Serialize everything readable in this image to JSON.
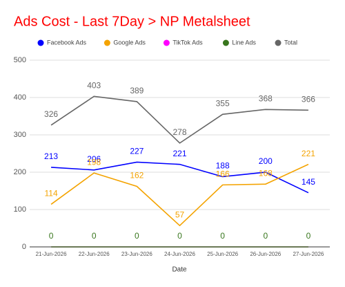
{
  "chart_data": {
    "type": "line",
    "title": "Ads Cost - Last 7Day > NP Metalsheet",
    "x_label": "Date",
    "categories": [
      "21-Jun-2026",
      "22-Jun-2026",
      "23-Jun-2026",
      "24-Jun-2026",
      "25-Jun-2026",
      "26-Jun-2026",
      "27-Jun-2026"
    ],
    "series": [
      {
        "name": "Facebook Ads",
        "color": "#0000ff",
        "values": [
          213,
          206,
          227,
          221,
          188,
          200,
          145
        ]
      },
      {
        "name": "Google Ads",
        "color": "#f4a300",
        "values": [
          114,
          198,
          162,
          57,
          166,
          168,
          221
        ]
      },
      {
        "name": "TikTok Ads",
        "color": "#ff00ff",
        "values": [
          0,
          0,
          0,
          0,
          0,
          0,
          0
        ],
        "data_labels": false
      },
      {
        "name": "Line Ads",
        "color": "#38761d",
        "values": [
          0,
          0,
          0,
          0,
          0,
          0,
          0
        ]
      },
      {
        "name": "Total",
        "color": "#666666",
        "values": [
          326,
          403,
          389,
          278,
          355,
          368,
          366
        ]
      }
    ],
    "ylim": [
      0,
      500
    ],
    "yticks": [
      0,
      100,
      200,
      300,
      400,
      500
    ],
    "grid": true,
    "legend": "top"
  }
}
